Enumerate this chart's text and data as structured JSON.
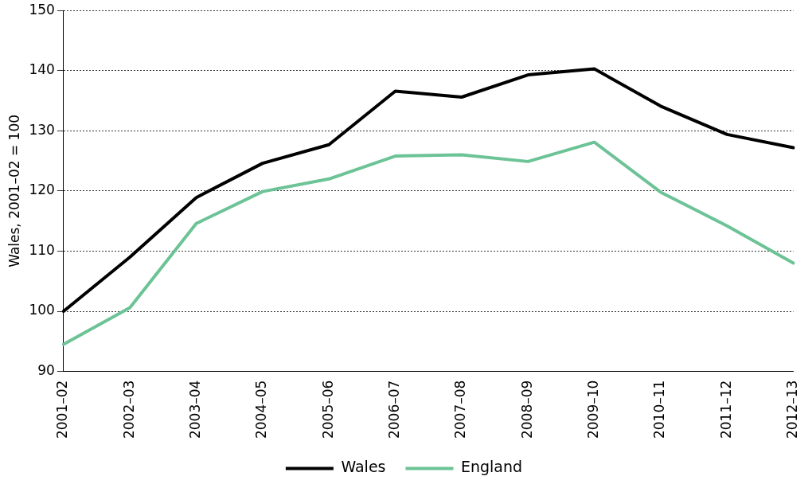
{
  "chart_data": {
    "type": "line",
    "ylabel": "Wales, 2001–02 = 100",
    "categories": [
      "2001–02",
      "2002–03",
      "2003–04",
      "2004–05",
      "2005–06",
      "2006–07",
      "2007–08",
      "2008–09",
      "2009–10",
      "2010–11",
      "2011–12",
      "2012–13"
    ],
    "series": [
      {
        "name": "Wales",
        "color": "#000000",
        "values": [
          100,
          109,
          118.9,
          124.6,
          127.7,
          136.6,
          135.6,
          139.3,
          140.3,
          134.1,
          129.4,
          127.2
        ]
      },
      {
        "name": "England",
        "color": "#6cc396",
        "values": [
          94.5,
          100.6,
          114.6,
          119.9,
          122,
          125.8,
          126,
          124.9,
          128.1,
          119.8,
          114.2,
          108
        ]
      }
    ],
    "ylim": [
      90,
      150
    ],
    "yticks": [
      90,
      100,
      110,
      120,
      130,
      140,
      150
    ],
    "grid": "y",
    "legend": "bottom",
    "marker": "none",
    "line_style": "solid"
  }
}
